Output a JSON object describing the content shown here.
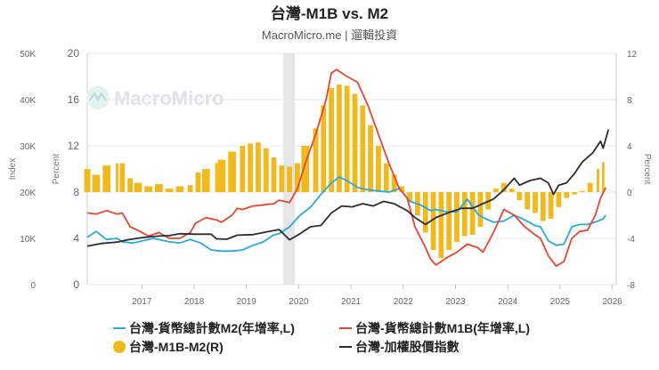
{
  "chart_data": {
    "type": "line+bar",
    "title": "台灣-M1B vs. M2",
    "subtitle": "MacroMicro.me | 遛輯投資",
    "watermark": "MacroMicro",
    "x_ticks": [
      "2017",
      "2018",
      "2019",
      "2020",
      "2021",
      "2022",
      "2023",
      "2024",
      "2025",
      "2026"
    ],
    "x_range": [
      2016.33,
      2026.45
    ],
    "recession_band": [
      2020.08,
      2020.3
    ],
    "axes": {
      "index": {
        "title": "Index",
        "ticks": [
          "50K",
          "40K",
          "30K",
          "20K",
          "10K",
          "0"
        ],
        "range": [
          0,
          50000
        ]
      },
      "percent_left": {
        "title": "Percent",
        "ticks": [
          "20",
          "16",
          "12",
          "8",
          "4",
          "0"
        ],
        "range": [
          0,
          20
        ]
      },
      "percent_right": {
        "title": "Percent",
        "ticks": [
          "12",
          "8",
          "4",
          "0",
          "-4",
          "-8"
        ],
        "range": [
          -8,
          12
        ]
      }
    },
    "legend": [
      {
        "label": "台灣-貨幣總計數M2(年增率,L)",
        "color": "#2aa9d8",
        "kind": "line"
      },
      {
        "label": "台灣-貨幣總計數M1B(年增率,L)",
        "color": "#e8452f",
        "kind": "line"
      },
      {
        "label": "台灣-M1B-M2(R)",
        "color": "#f2b91e",
        "kind": "dot"
      },
      {
        "label": "台灣-加權股價指數",
        "color": "#2b2b33",
        "kind": "line"
      }
    ],
    "series": [
      {
        "name": "台灣-貨幣總計數M2(年增率,L)",
        "axis": "percent_left",
        "color": "#2aa9d8",
        "points": [
          [
            2016.33,
            4.1
          ],
          [
            2016.5,
            4.6
          ],
          [
            2016.7,
            3.9
          ],
          [
            2016.9,
            4.0
          ],
          [
            2017.0,
            3.7
          ],
          [
            2017.2,
            3.6
          ],
          [
            2017.4,
            3.8
          ],
          [
            2017.6,
            4.0
          ],
          [
            2017.8,
            3.8
          ],
          [
            2017.9,
            3.7
          ],
          [
            2018.1,
            3.6
          ],
          [
            2018.3,
            3.9
          ],
          [
            2018.5,
            3.6
          ],
          [
            2018.7,
            3.0
          ],
          [
            2018.9,
            2.9
          ],
          [
            2019.1,
            2.9
          ],
          [
            2019.3,
            3.0
          ],
          [
            2019.5,
            3.4
          ],
          [
            2019.7,
            3.7
          ],
          [
            2019.9,
            4.3
          ],
          [
            2020.0,
            4.4
          ],
          [
            2020.2,
            5.0
          ],
          [
            2020.4,
            6.0
          ],
          [
            2020.6,
            6.7
          ],
          [
            2020.8,
            7.8
          ],
          [
            2021.0,
            8.8
          ],
          [
            2021.15,
            9.3
          ],
          [
            2021.3,
            9.0
          ],
          [
            2021.5,
            8.4
          ],
          [
            2021.7,
            8.2
          ],
          [
            2021.9,
            8.1
          ],
          [
            2022.1,
            8.0
          ],
          [
            2022.3,
            8.3
          ],
          [
            2022.5,
            7.2
          ],
          [
            2022.7,
            6.9
          ],
          [
            2022.9,
            6.4
          ],
          [
            2023.0,
            6.5
          ],
          [
            2023.2,
            6.3
          ],
          [
            2023.4,
            6.3
          ],
          [
            2023.6,
            7.4
          ],
          [
            2023.8,
            6.1
          ],
          [
            2023.9,
            5.8
          ],
          [
            2024.1,
            5.4
          ],
          [
            2024.3,
            5.5
          ],
          [
            2024.5,
            6.0
          ],
          [
            2024.7,
            5.6
          ],
          [
            2024.9,
            5.1
          ],
          [
            2025.0,
            5.0
          ],
          [
            2025.15,
            3.8
          ],
          [
            2025.3,
            3.4
          ],
          [
            2025.45,
            3.5
          ],
          [
            2025.6,
            5.0
          ],
          [
            2025.75,
            5.2
          ],
          [
            2025.9,
            5.2
          ],
          [
            2026.1,
            5.5
          ],
          [
            2026.2,
            5.7
          ],
          [
            2026.25,
            6.0
          ]
        ]
      },
      {
        "name": "台灣-貨幣總計數M1B(年增率,L)",
        "axis": "percent_left",
        "color": "#e8452f",
        "points": [
          [
            2016.33,
            6.2
          ],
          [
            2016.5,
            6.1
          ],
          [
            2016.7,
            6.4
          ],
          [
            2016.9,
            6.1
          ],
          [
            2017.0,
            6.2
          ],
          [
            2017.15,
            5.0
          ],
          [
            2017.3,
            4.7
          ],
          [
            2017.5,
            4.2
          ],
          [
            2017.7,
            4.5
          ],
          [
            2017.9,
            4.0
          ],
          [
            2018.1,
            4.0
          ],
          [
            2018.3,
            4.5
          ],
          [
            2018.4,
            5.3
          ],
          [
            2018.6,
            5.8
          ],
          [
            2018.8,
            5.6
          ],
          [
            2018.9,
            5.4
          ],
          [
            2019.1,
            6.0
          ],
          [
            2019.2,
            6.6
          ],
          [
            2019.3,
            6.5
          ],
          [
            2019.5,
            6.8
          ],
          [
            2019.7,
            6.9
          ],
          [
            2019.9,
            7.0
          ],
          [
            2020.0,
            7.3
          ],
          [
            2020.2,
            7.1
          ],
          [
            2020.35,
            8.3
          ],
          [
            2020.5,
            10.5
          ],
          [
            2020.7,
            13.0
          ],
          [
            2020.9,
            16.0
          ],
          [
            2021.0,
            18.3
          ],
          [
            2021.1,
            18.6
          ],
          [
            2021.3,
            18.0
          ],
          [
            2021.5,
            17.5
          ],
          [
            2021.7,
            15.5
          ],
          [
            2021.9,
            13.0
          ],
          [
            2022.1,
            10.5
          ],
          [
            2022.3,
            8.3
          ],
          [
            2022.45,
            7.5
          ],
          [
            2022.6,
            5.0
          ],
          [
            2022.8,
            3.2
          ],
          [
            2022.9,
            2.2
          ],
          [
            2023.0,
            1.7
          ],
          [
            2023.2,
            2.3
          ],
          [
            2023.4,
            2.8
          ],
          [
            2023.6,
            3.5
          ],
          [
            2023.8,
            3.2
          ],
          [
            2023.9,
            2.8
          ],
          [
            2024.1,
            4.5
          ],
          [
            2024.3,
            6.5
          ],
          [
            2024.5,
            6.0
          ],
          [
            2024.7,
            5.0
          ],
          [
            2024.9,
            4.3
          ],
          [
            2025.0,
            4.0
          ],
          [
            2025.15,
            2.5
          ],
          [
            2025.3,
            1.6
          ],
          [
            2025.45,
            2.0
          ],
          [
            2025.6,
            4.0
          ],
          [
            2025.75,
            4.6
          ],
          [
            2025.9,
            4.7
          ],
          [
            2026.05,
            6.0
          ],
          [
            2026.15,
            7.5
          ],
          [
            2026.25,
            8.4
          ]
        ]
      },
      {
        "name": "台灣-加權股價指數",
        "axis": "index",
        "color": "#2b2b33",
        "points": [
          [
            2016.33,
            8300
          ],
          [
            2016.6,
            8900
          ],
          [
            2016.9,
            9200
          ],
          [
            2017.1,
            9700
          ],
          [
            2017.4,
            10200
          ],
          [
            2017.7,
            10500
          ],
          [
            2017.9,
            10600
          ],
          [
            2018.1,
            11000
          ],
          [
            2018.4,
            10900
          ],
          [
            2018.7,
            10900
          ],
          [
            2018.8,
            9900
          ],
          [
            2019.0,
            9800
          ],
          [
            2019.2,
            10700
          ],
          [
            2019.5,
            10800
          ],
          [
            2019.8,
            11500
          ],
          [
            2020.0,
            11900
          ],
          [
            2020.2,
            9700
          ],
          [
            2020.4,
            11000
          ],
          [
            2020.6,
            12500
          ],
          [
            2020.8,
            12800
          ],
          [
            2021.0,
            15500
          ],
          [
            2021.2,
            17000
          ],
          [
            2021.4,
            16800
          ],
          [
            2021.6,
            17500
          ],
          [
            2021.8,
            17000
          ],
          [
            2022.0,
            18000
          ],
          [
            2022.2,
            17500
          ],
          [
            2022.45,
            16000
          ],
          [
            2022.6,
            14500
          ],
          [
            2022.8,
            13000
          ],
          [
            2023.0,
            14500
          ],
          [
            2023.3,
            15800
          ],
          [
            2023.5,
            16500
          ],
          [
            2023.7,
            16500
          ],
          [
            2023.9,
            17500
          ],
          [
            2024.1,
            18500
          ],
          [
            2024.3,
            20500
          ],
          [
            2024.5,
            23000
          ],
          [
            2024.6,
            21500
          ],
          [
            2024.8,
            22500
          ],
          [
            2025.0,
            23000
          ],
          [
            2025.15,
            22000
          ],
          [
            2025.25,
            19500
          ],
          [
            2025.35,
            21500
          ],
          [
            2025.5,
            22000
          ],
          [
            2025.65,
            24000
          ],
          [
            2025.8,
            26500
          ],
          [
            2026.0,
            28500
          ],
          [
            2026.15,
            31000
          ],
          [
            2026.2,
            29500
          ],
          [
            2026.3,
            33500
          ]
        ]
      }
    ],
    "bars": {
      "name": "台灣-M1B-M2(R)",
      "axis": "percent_right",
      "color": "#f2b91e",
      "points": [
        [
          2016.33,
          2.0
        ],
        [
          2016.5,
          1.5
        ],
        [
          2016.7,
          2.3
        ],
        [
          2016.9,
          2.5
        ],
        [
          2017.0,
          2.5
        ],
        [
          2017.15,
          1.2
        ],
        [
          2017.3,
          0.8
        ],
        [
          2017.5,
          0.5
        ],
        [
          2017.7,
          0.7
        ],
        [
          2017.9,
          0.3
        ],
        [
          2018.1,
          0.5
        ],
        [
          2018.3,
          0.6
        ],
        [
          2018.45,
          1.7
        ],
        [
          2018.6,
          2.0
        ],
        [
          2018.8,
          2.5
        ],
        [
          2018.9,
          2.8
        ],
        [
          2019.1,
          3.5
        ],
        [
          2019.3,
          4.0
        ],
        [
          2019.45,
          4.2
        ],
        [
          2019.6,
          4.3
        ],
        [
          2019.75,
          3.8
        ],
        [
          2019.9,
          3.0
        ],
        [
          2020.05,
          2.3
        ],
        [
          2020.2,
          2.2
        ],
        [
          2020.35,
          2.5
        ],
        [
          2020.5,
          4.0
        ],
        [
          2020.7,
          5.5
        ],
        [
          2020.85,
          7.5
        ],
        [
          2021.0,
          9.0
        ],
        [
          2021.15,
          9.3
        ],
        [
          2021.3,
          9.2
        ],
        [
          2021.45,
          8.5
        ],
        [
          2021.6,
          7.5
        ],
        [
          2021.75,
          5.8
        ],
        [
          2021.9,
          4.0
        ],
        [
          2022.05,
          2.5
        ],
        [
          2022.2,
          1.5
        ],
        [
          2022.35,
          0.5
        ],
        [
          2022.5,
          -0.8
        ],
        [
          2022.65,
          -2.0
        ],
        [
          2022.8,
          -3.5
        ],
        [
          2022.95,
          -5.0
        ],
        [
          2023.1,
          -5.7
        ],
        [
          2023.25,
          -5.0
        ],
        [
          2023.4,
          -4.3
        ],
        [
          2023.55,
          -3.8
        ],
        [
          2023.7,
          -3.7
        ],
        [
          2023.85,
          -3.0
        ],
        [
          2024.0,
          -1.5
        ],
        [
          2024.15,
          0.3
        ],
        [
          2024.3,
          0.8
        ],
        [
          2024.45,
          0.3
        ],
        [
          2024.6,
          -0.7
        ],
        [
          2024.75,
          -1.5
        ],
        [
          2024.9,
          -1.8
        ],
        [
          2025.05,
          -2.5
        ],
        [
          2025.2,
          -2.3
        ],
        [
          2025.35,
          -1.3
        ],
        [
          2025.5,
          -0.5
        ],
        [
          2025.65,
          -0.2
        ],
        [
          2025.8,
          0.1
        ],
        [
          2025.95,
          0.8
        ],
        [
          2026.1,
          2.0
        ],
        [
          2026.2,
          2.6
        ]
      ]
    }
  }
}
